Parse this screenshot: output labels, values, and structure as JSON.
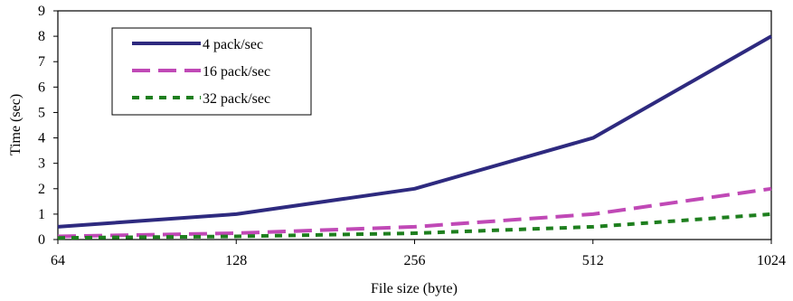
{
  "chart_data": {
    "type": "line",
    "title": "",
    "xlabel": "File size (byte)",
    "ylabel": "Time (sec)",
    "x_scale": "log2",
    "categories": [
      "64",
      "128",
      "256",
      "512",
      "1024"
    ],
    "ylim": [
      0,
      9
    ],
    "yticks": [
      0,
      1,
      2,
      3,
      4,
      5,
      6,
      7,
      8,
      9
    ],
    "grid": false,
    "legend_position": "top-left",
    "series": [
      {
        "name": "4 pack/sec",
        "values": [
          0.5,
          1.0,
          2.0,
          4.0,
          8.0
        ],
        "color": "#2e2a7f",
        "style": "solid"
      },
      {
        "name": "16 pack/sec",
        "values": [
          0.125,
          0.25,
          0.5,
          1.0,
          2.0
        ],
        "color": "#c049b6",
        "style": "long-dash"
      },
      {
        "name": "32 pack/sec",
        "values": [
          0.0625,
          0.125,
          0.25,
          0.5,
          1.0
        ],
        "color": "#1e7f1e",
        "style": "short-dash"
      }
    ]
  }
}
